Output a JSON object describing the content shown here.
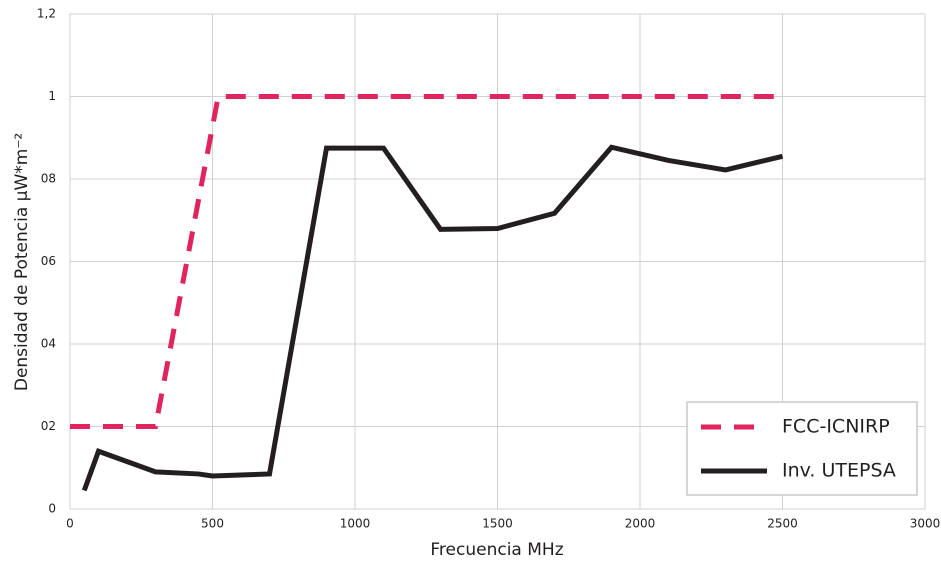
{
  "chart_data": {
    "type": "line",
    "xlabel": "Frecuencia MHz",
    "ylabel": "Densidad de Potencia  µW*m⁻²",
    "xlim": [
      0,
      3000
    ],
    "xticks": [
      0,
      500,
      1000,
      1500,
      2000,
      2500,
      3000
    ],
    "ylim": [
      0,
      1.2
    ],
    "yticks": [
      0,
      {
        "value": 0.2,
        "label": "02"
      },
      {
        "value": 0.4,
        "label": "04"
      },
      {
        "value": 0.6,
        "label": "06"
      },
      {
        "value": 0.8,
        "label": "08"
      },
      1,
      {
        "value": 1.2,
        "label": "1,2"
      }
    ],
    "grid": true,
    "legend": "lower right",
    "series": [
      {
        "name": "FCC-ICNIRP",
        "color": "#e0245e",
        "dashed": true,
        "x": [
          0,
          300,
          520,
          2500
        ],
        "values": [
          0.2,
          0.2,
          1.0,
          1.0
        ]
      },
      {
        "name": "Inv. UTEPSA",
        "color": "#231f20",
        "dashed": false,
        "x": [
          50,
          100,
          300,
          450,
          500,
          700,
          900,
          1100,
          1300,
          1500,
          1700,
          1900,
          2100,
          2300,
          2500
        ],
        "values": [
          0.045,
          0.14,
          0.09,
          0.085,
          0.08,
          0.085,
          0.875,
          0.875,
          0.678,
          0.68,
          0.717,
          0.877,
          0.845,
          0.822,
          0.855
        ]
      }
    ]
  }
}
